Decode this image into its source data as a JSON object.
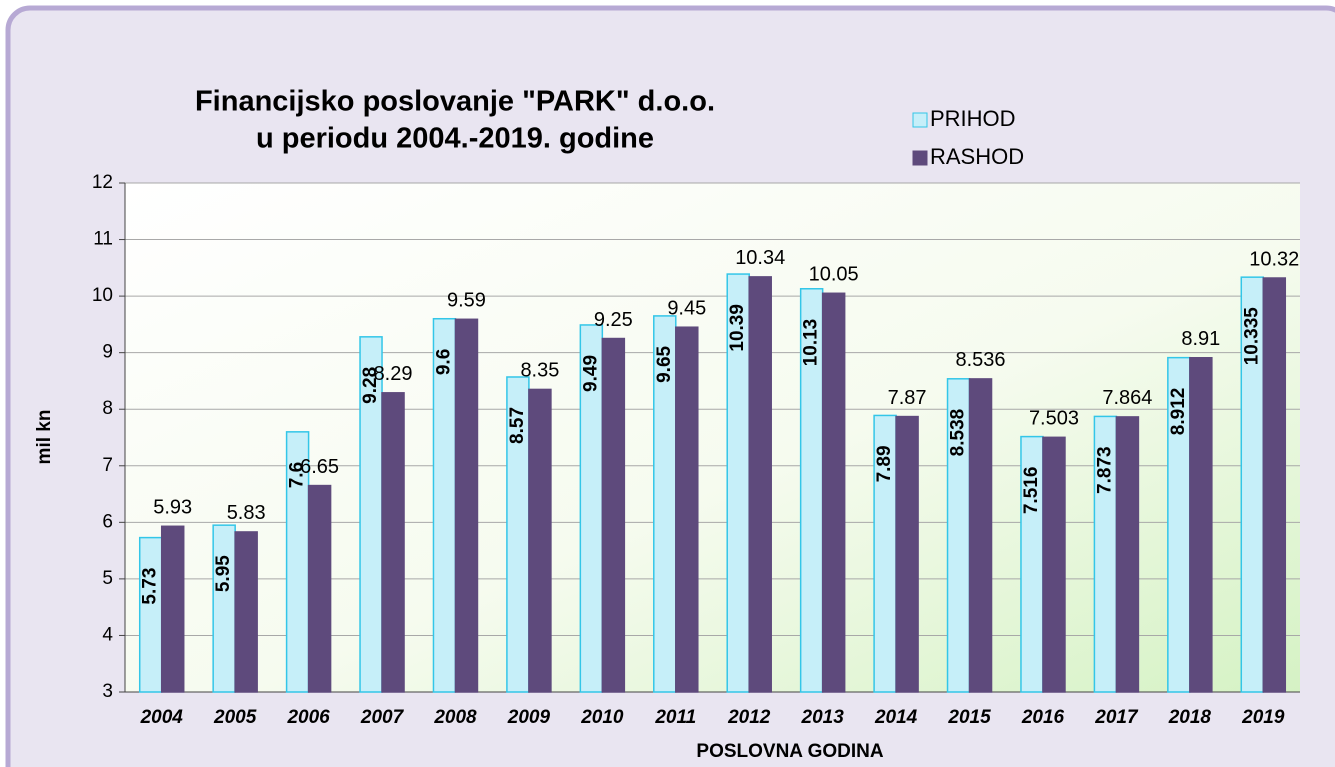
{
  "chart_data": {
    "type": "bar",
    "title": [
      "Financijsko poslovanje \"PARK\" d.o.o.",
      "u periodu  2004.-2019. godine"
    ],
    "x_label": "POSLOVNA   GODINA",
    "y_label": "mil kn",
    "categories": [
      "2004",
      "2005",
      "2006",
      "2007",
      "2008",
      "2009",
      "2010",
      "2011",
      "2012",
      "2013",
      "2014",
      "2015",
      "2016",
      "2017",
      "2018",
      "2019"
    ],
    "series": [
      {
        "name": "PRIHOD",
        "color": "#c6eff9",
        "values": [
          5.73,
          5.95,
          7.6,
          9.28,
          9.6,
          8.57,
          9.49,
          9.65,
          10.39,
          10.13,
          7.89,
          8.538,
          7.516,
          7.873,
          8.912,
          10.335
        ]
      },
      {
        "name": "RASHOD",
        "color": "#5e4a7c",
        "values": [
          5.93,
          5.83,
          6.65,
          8.29,
          9.59,
          8.35,
          9.25,
          9.45,
          10.34,
          10.05,
          7.87,
          8.536,
          7.503,
          7.864,
          8.91,
          10.32
        ]
      }
    ],
    "ylim": [
      3,
      12
    ],
    "yticks": [
      3,
      4,
      5,
      6,
      7,
      8,
      9,
      10,
      11,
      12
    ],
    "grid": true,
    "legend": "top-right"
  }
}
